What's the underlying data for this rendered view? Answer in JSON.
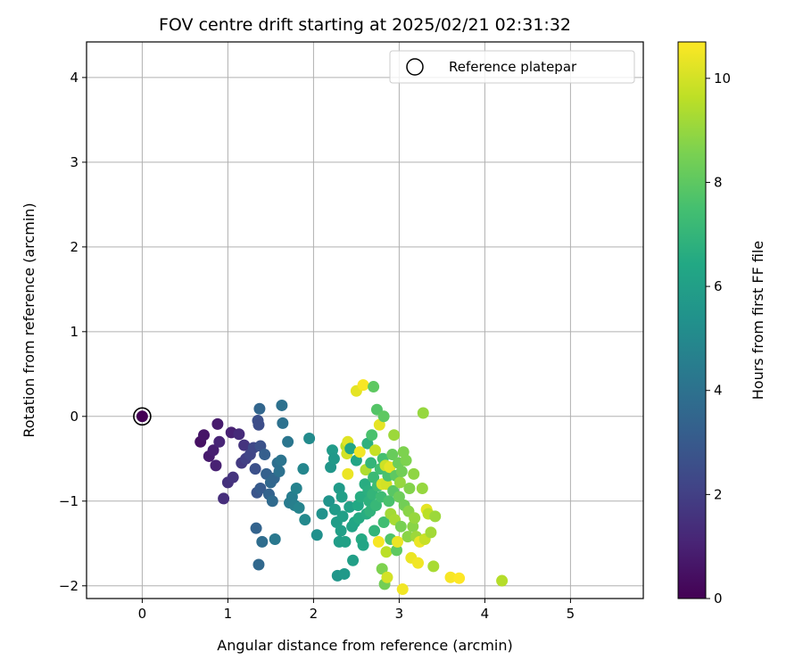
{
  "chart_data": {
    "type": "scatter",
    "title": "FOV centre drift starting at 2025/02/21 02:31:32",
    "xlabel": "Angular distance from reference (arcmin)",
    "ylabel": "Rotation from reference (arcmin)",
    "xlim": [
      -0.65,
      5.85
    ],
    "ylim": [
      -2.15,
      4.42
    ],
    "xticks": [
      0,
      1,
      2,
      3,
      4,
      5
    ],
    "xtick_labels": [
      "0",
      "1",
      "2",
      "3",
      "4",
      "5"
    ],
    "yticks": [
      -2,
      -1,
      0,
      1,
      2,
      3,
      4
    ],
    "ytick_labels": [
      "−2",
      "−1",
      "0",
      "1",
      "2",
      "3",
      "4"
    ],
    "grid": true,
    "legend": {
      "placement": "top-right",
      "entries": [
        "Reference platepar"
      ]
    },
    "reference_point": {
      "name": "Reference platepar",
      "x": 0,
      "y": 0
    },
    "colorbar": {
      "label": "Hours from first FF file",
      "range": [
        0,
        10.7
      ],
      "ticks": [
        0,
        2,
        4,
        6,
        8,
        10
      ],
      "tick_labels": [
        "0",
        "2",
        "4",
        "6",
        "8",
        "10"
      ],
      "colormap": "viridis"
    },
    "points": [
      {
        "x": 0,
        "y": 0,
        "h": 0
      },
      {
        "x": 0.68,
        "y": -0.3,
        "h": 0.5
      },
      {
        "x": 0.72,
        "y": -0.22,
        "h": 0.6
      },
      {
        "x": 0.78,
        "y": -0.47,
        "h": 0.8
      },
      {
        "x": 0.83,
        "y": -0.4,
        "h": 0.9
      },
      {
        "x": 0.86,
        "y": -0.58,
        "h": 1.0
      },
      {
        "x": 0.88,
        "y": -0.09,
        "h": 0.8
      },
      {
        "x": 0.9,
        "y": -0.3,
        "h": 1.1
      },
      {
        "x": 0.95,
        "y": -0.97,
        "h": 1.4
      },
      {
        "x": 1.0,
        "y": -0.78,
        "h": 1.5
      },
      {
        "x": 1.04,
        "y": -0.19,
        "h": 1.0
      },
      {
        "x": 1.06,
        "y": -0.72,
        "h": 1.6
      },
      {
        "x": 1.13,
        "y": -0.21,
        "h": 1.3
      },
      {
        "x": 1.16,
        "y": -0.55,
        "h": 1.8
      },
      {
        "x": 1.19,
        "y": -0.34,
        "h": 1.6
      },
      {
        "x": 1.21,
        "y": -0.5,
        "h": 2.0
      },
      {
        "x": 1.26,
        "y": -0.45,
        "h": 2.2
      },
      {
        "x": 1.3,
        "y": -0.37,
        "h": 2.3
      },
      {
        "x": 1.32,
        "y": -0.62,
        "h": 2.6
      },
      {
        "x": 1.33,
        "y": -1.32,
        "h": 3.4
      },
      {
        "x": 1.34,
        "y": -0.9,
        "h": 2.8
      },
      {
        "x": 1.35,
        "y": -0.05,
        "h": 2.6
      },
      {
        "x": 1.36,
        "y": -0.1,
        "h": 2.5
      },
      {
        "x": 1.36,
        "y": -1.75,
        "h": 3.6
      },
      {
        "x": 1.37,
        "y": 0.09,
        "h": 3.5
      },
      {
        "x": 1.38,
        "y": -0.35,
        "h": 2.7
      },
      {
        "x": 1.38,
        "y": -0.85,
        "h": 3.0
      },
      {
        "x": 1.4,
        "y": -1.48,
        "h": 3.8
      },
      {
        "x": 1.43,
        "y": -0.45,
        "h": 3.2
      },
      {
        "x": 1.45,
        "y": -0.68,
        "h": 3.3
      },
      {
        "x": 1.48,
        "y": -0.92,
        "h": 3.4
      },
      {
        "x": 1.5,
        "y": -0.78,
        "h": 3.6
      },
      {
        "x": 1.52,
        "y": -1.0,
        "h": 3.7
      },
      {
        "x": 1.54,
        "y": -0.73,
        "h": 3.5
      },
      {
        "x": 1.55,
        "y": -1.45,
        "h": 4.3
      },
      {
        "x": 1.58,
        "y": -0.55,
        "h": 3.9
      },
      {
        "x": 1.6,
        "y": -0.65,
        "h": 4.0
      },
      {
        "x": 1.62,
        "y": -0.52,
        "h": 4.1
      },
      {
        "x": 1.63,
        "y": 0.13,
        "h": 4.0
      },
      {
        "x": 1.64,
        "y": -0.08,
        "h": 4.0
      },
      {
        "x": 1.7,
        "y": -0.3,
        "h": 4.2
      },
      {
        "x": 1.72,
        "y": -1.02,
        "h": 4.4
      },
      {
        "x": 1.75,
        "y": -0.95,
        "h": 4.5
      },
      {
        "x": 1.78,
        "y": -1.05,
        "h": 4.6
      },
      {
        "x": 1.8,
        "y": -0.85,
        "h": 4.7
      },
      {
        "x": 1.83,
        "y": -1.08,
        "h": 4.8
      },
      {
        "x": 1.88,
        "y": -0.62,
        "h": 4.9
      },
      {
        "x": 1.9,
        "y": -1.22,
        "h": 5.0
      },
      {
        "x": 1.95,
        "y": -0.26,
        "h": 5.1
      },
      {
        "x": 2.04,
        "y": -1.4,
        "h": 5.3
      },
      {
        "x": 2.1,
        "y": -1.15,
        "h": 5.4
      },
      {
        "x": 2.18,
        "y": -1.0,
        "h": 5.5
      },
      {
        "x": 2.2,
        "y": -0.6,
        "h": 5.6
      },
      {
        "x": 2.22,
        "y": -0.4,
        "h": 5.8
      },
      {
        "x": 2.24,
        "y": -0.5,
        "h": 5.7
      },
      {
        "x": 2.25,
        "y": -1.1,
        "h": 5.8
      },
      {
        "x": 2.27,
        "y": -1.25,
        "h": 5.9
      },
      {
        "x": 2.28,
        "y": -1.88,
        "h": 5.6
      },
      {
        "x": 2.3,
        "y": -1.48,
        "h": 5.9
      },
      {
        "x": 2.3,
        "y": -0.85,
        "h": 5.8
      },
      {
        "x": 2.32,
        "y": -1.35,
        "h": 6.0
      },
      {
        "x": 2.33,
        "y": -0.95,
        "h": 6.0
      },
      {
        "x": 2.34,
        "y": -1.18,
        "h": 6.0
      },
      {
        "x": 2.36,
        "y": -1.86,
        "h": 5.7
      },
      {
        "x": 2.37,
        "y": -1.48,
        "h": 6.1
      },
      {
        "x": 2.38,
        "y": -0.35,
        "h": 9.6
      },
      {
        "x": 2.39,
        "y": -0.44,
        "h": 10.0
      },
      {
        "x": 2.4,
        "y": -0.3,
        "h": 10.2
      },
      {
        "x": 2.4,
        "y": -0.68,
        "h": 10.4
      },
      {
        "x": 2.42,
        "y": -1.07,
        "h": 6.1
      },
      {
        "x": 2.43,
        "y": -0.38,
        "h": 6.3
      },
      {
        "x": 2.45,
        "y": -1.3,
        "h": 6.2
      },
      {
        "x": 2.46,
        "y": -1.7,
        "h": 6.0
      },
      {
        "x": 2.48,
        "y": -1.25,
        "h": 6.3
      },
      {
        "x": 2.5,
        "y": -0.52,
        "h": 6.3
      },
      {
        "x": 2.5,
        "y": 0.3,
        "h": 10.3
      },
      {
        "x": 2.52,
        "y": -1.05,
        "h": 6.4
      },
      {
        "x": 2.53,
        "y": -1.2,
        "h": 6.5
      },
      {
        "x": 2.54,
        "y": -0.42,
        "h": 10.5
      },
      {
        "x": 2.55,
        "y": -0.95,
        "h": 6.6
      },
      {
        "x": 2.56,
        "y": -1.45,
        "h": 6.5
      },
      {
        "x": 2.58,
        "y": 0.37,
        "h": 10.6
      },
      {
        "x": 2.58,
        "y": -1.52,
        "h": 6.3
      },
      {
        "x": 2.6,
        "y": -0.8,
        "h": 6.6
      },
      {
        "x": 2.61,
        "y": -0.63,
        "h": 9.4
      },
      {
        "x": 2.62,
        "y": -1.15,
        "h": 6.6
      },
      {
        "x": 2.63,
        "y": -0.32,
        "h": 6.8
      },
      {
        "x": 2.64,
        "y": -0.88,
        "h": 6.7
      },
      {
        "x": 2.65,
        "y": -1.0,
        "h": 6.8
      },
      {
        "x": 2.66,
        "y": -1.12,
        "h": 6.9
      },
      {
        "x": 2.67,
        "y": -0.55,
        "h": 7.0
      },
      {
        "x": 2.68,
        "y": -0.22,
        "h": 7.6
      },
      {
        "x": 2.69,
        "y": -0.92,
        "h": 7.0
      },
      {
        "x": 2.7,
        "y": 0.35,
        "h": 8.0
      },
      {
        "x": 2.7,
        "y": -0.72,
        "h": 7.2
      },
      {
        "x": 2.71,
        "y": -1.35,
        "h": 7.0
      },
      {
        "x": 2.72,
        "y": -0.4,
        "h": 9.8
      },
      {
        "x": 2.73,
        "y": -1.05,
        "h": 7.1
      },
      {
        "x": 2.74,
        "y": 0.08,
        "h": 7.8
      },
      {
        "x": 2.75,
        "y": -0.82,
        "h": 7.3
      },
      {
        "x": 2.76,
        "y": -1.48,
        "h": 10.6
      },
      {
        "x": 2.77,
        "y": -0.1,
        "h": 10.3
      },
      {
        "x": 2.78,
        "y": -0.62,
        "h": 7.4
      },
      {
        "x": 2.79,
        "y": -0.95,
        "h": 7.3
      },
      {
        "x": 2.8,
        "y": -0.8,
        "h": 10.1
      },
      {
        "x": 2.8,
        "y": -1.8,
        "h": 8.6
      },
      {
        "x": 2.81,
        "y": -0.5,
        "h": 7.5
      },
      {
        "x": 2.82,
        "y": 0.0,
        "h": 8.0
      },
      {
        "x": 2.82,
        "y": -1.25,
        "h": 7.4
      },
      {
        "x": 2.83,
        "y": -1.98,
        "h": 8.4
      },
      {
        "x": 2.84,
        "y": -0.58,
        "h": 9.9
      },
      {
        "x": 2.85,
        "y": -1.6,
        "h": 9.6
      },
      {
        "x": 2.85,
        "y": -0.8,
        "h": 10.0
      },
      {
        "x": 2.86,
        "y": -1.9,
        "h": 10.0
      },
      {
        "x": 2.87,
        "y": -0.7,
        "h": 7.6
      },
      {
        "x": 2.88,
        "y": -1.0,
        "h": 7.6
      },
      {
        "x": 2.89,
        "y": -0.6,
        "h": 10.3
      },
      {
        "x": 2.9,
        "y": -1.45,
        "h": 7.7
      },
      {
        "x": 2.9,
        "y": -1.15,
        "h": 9.2
      },
      {
        "x": 2.92,
        "y": -0.45,
        "h": 8.2
      },
      {
        "x": 2.93,
        "y": -0.88,
        "h": 7.9
      },
      {
        "x": 2.94,
        "y": -0.22,
        "h": 9.1
      },
      {
        "x": 2.95,
        "y": -1.22,
        "h": 9.3
      },
      {
        "x": 2.96,
        "y": -0.7,
        "h": 8.0
      },
      {
        "x": 2.97,
        "y": -1.58,
        "h": 8.0
      },
      {
        "x": 2.98,
        "y": -1.48,
        "h": 10.4
      },
      {
        "x": 2.99,
        "y": -0.55,
        "h": 8.3
      },
      {
        "x": 3.0,
        "y": -0.95,
        "h": 8.3
      },
      {
        "x": 3.01,
        "y": -0.78,
        "h": 9.0
      },
      {
        "x": 3.02,
        "y": -1.3,
        "h": 8.5
      },
      {
        "x": 3.03,
        "y": -0.65,
        "h": 8.4
      },
      {
        "x": 3.04,
        "y": -2.04,
        "h": 10.5
      },
      {
        "x": 3.05,
        "y": -0.42,
        "h": 8.6
      },
      {
        "x": 3.06,
        "y": -1.05,
        "h": 8.4
      },
      {
        "x": 3.08,
        "y": -0.52,
        "h": 8.6
      },
      {
        "x": 3.1,
        "y": -1.42,
        "h": 8.8
      },
      {
        "x": 3.11,
        "y": -1.12,
        "h": 8.8
      },
      {
        "x": 3.12,
        "y": -0.85,
        "h": 8.7
      },
      {
        "x": 3.14,
        "y": -1.67,
        "h": 10.4
      },
      {
        "x": 3.16,
        "y": -1.3,
        "h": 8.8
      },
      {
        "x": 3.17,
        "y": -0.68,
        "h": 8.9
      },
      {
        "x": 3.18,
        "y": -1.2,
        "h": 9.0
      },
      {
        "x": 3.2,
        "y": -1.42,
        "h": 9.1
      },
      {
        "x": 3.22,
        "y": -1.73,
        "h": 10.5
      },
      {
        "x": 3.24,
        "y": -1.48,
        "h": 10.4
      },
      {
        "x": 3.27,
        "y": -0.85,
        "h": 9.0
      },
      {
        "x": 3.28,
        "y": 0.04,
        "h": 9.0
      },
      {
        "x": 3.3,
        "y": -1.45,
        "h": 9.8
      },
      {
        "x": 3.32,
        "y": -1.1,
        "h": 10.3
      },
      {
        "x": 3.34,
        "y": -1.15,
        "h": 9.6
      },
      {
        "x": 3.37,
        "y": -1.37,
        "h": 9.2
      },
      {
        "x": 3.4,
        "y": -1.77,
        "h": 9.3
      },
      {
        "x": 3.42,
        "y": -1.18,
        "h": 9.1
      },
      {
        "x": 3.6,
        "y": -1.9,
        "h": 10.6
      },
      {
        "x": 3.7,
        "y": -1.91,
        "h": 10.7
      },
      {
        "x": 4.2,
        "y": -1.94,
        "h": 9.5
      }
    ]
  }
}
